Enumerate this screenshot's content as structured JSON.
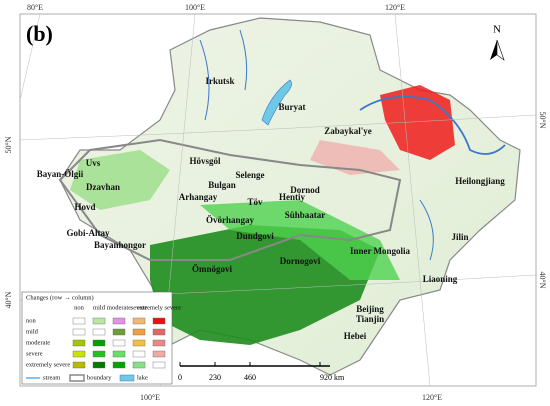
{
  "panel_label": "(b)",
  "north": "N",
  "graticule": {
    "top": [
      "80°E",
      "100°E",
      "120°E"
    ],
    "bottom": [
      "100°E",
      "120°E"
    ],
    "left": [
      "50°N",
      "40°N"
    ],
    "right": [
      "50°N",
      "40°N"
    ]
  },
  "regions": [
    "Irkutsk",
    "Buryat",
    "Zabaykal'ye",
    "Heilongjiang",
    "Hövsgöl",
    "Uvs",
    "Bayan-Ölgii",
    "Dzavhan",
    "Selenge",
    "Bulgan",
    "Arhangay",
    "Töv",
    "Dornod",
    "Hentiy",
    "Hovd",
    "Gobi-Altay",
    "Övörhangay",
    "Sühbaatar",
    "Dundgovi",
    "Bayanhongor",
    "Dornogovi",
    "Inner Mongolia",
    "Jilin",
    "Ömnögovi",
    "Liaoning",
    "Beijing",
    "Tianjin",
    "Hebei"
  ],
  "legend": {
    "title": "Changes (row → column)",
    "columns": [
      "non",
      "mild",
      "moderate",
      "severe",
      "extremely severe"
    ],
    "rows": [
      "non",
      "mild",
      "moderate",
      "severe",
      "extremely severe"
    ],
    "items": [
      "stream",
      "boundary",
      "lake"
    ]
  },
  "scale": [
    "0",
    "230",
    "460",
    "920 km"
  ]
}
